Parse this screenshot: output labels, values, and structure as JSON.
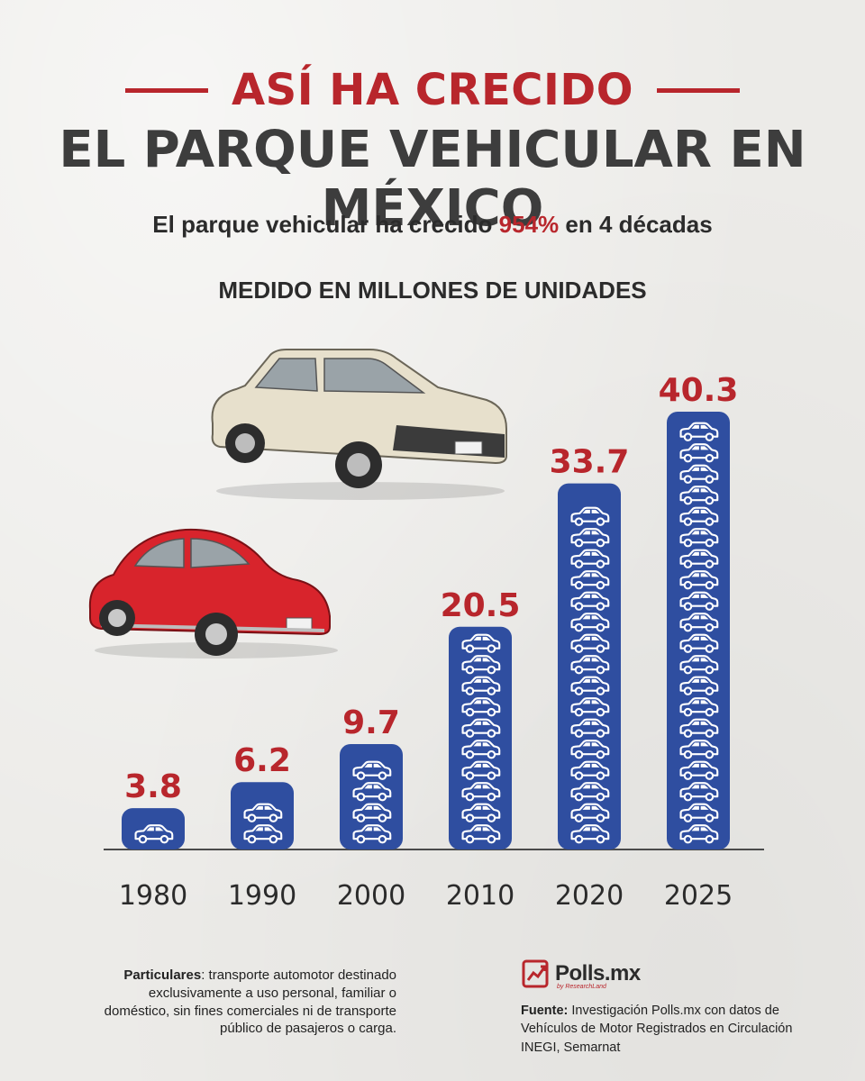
{
  "header": {
    "title_top": "ASÍ HA CRECIDO",
    "title_main": "EL PARQUE VEHICULAR EN MÉXICO",
    "subtitle_before": "El parque vehicular ha crecido ",
    "subtitle_highlight": "954%",
    "subtitle_after": " en 4 décadas",
    "unit_label": "MEDIDO EN MILLONES DE UNIDADES"
  },
  "chart_data": {
    "type": "bar",
    "categories": [
      "1980",
      "1990",
      "2000",
      "2010",
      "2020",
      "2025"
    ],
    "values": [
      3.8,
      6.2,
      9.7,
      20.5,
      33.7,
      40.3
    ],
    "value_labels": [
      "3.8",
      "6.2",
      "9.7",
      "20.5",
      "33.7",
      "40.3"
    ],
    "ylim": [
      0,
      40.3
    ],
    "grid": false,
    "bar_fill": "car-pictogram-stack",
    "bar_color": "#2f4ea0",
    "value_color": "#b8262c"
  },
  "colors": {
    "accent_red": "#b8262c",
    "bar_blue": "#2f4ea0",
    "dark_text": "#3d3d3d"
  },
  "footer": {
    "note_term": "Particulares",
    "note_text": ": transporte automotor destinado exclusivamente a uso personal, familiar o doméstico, sin fines comerciales ni de transporte público de pasajeros o carga.",
    "logo_text": "Polls.mx",
    "logo_sub": "by ResearchLand",
    "source_term": "Fuente:",
    "source_text": " Investigación Polls.mx con datos de Vehículos de Motor Registrados en Circulación INEGI, Semarnat"
  }
}
